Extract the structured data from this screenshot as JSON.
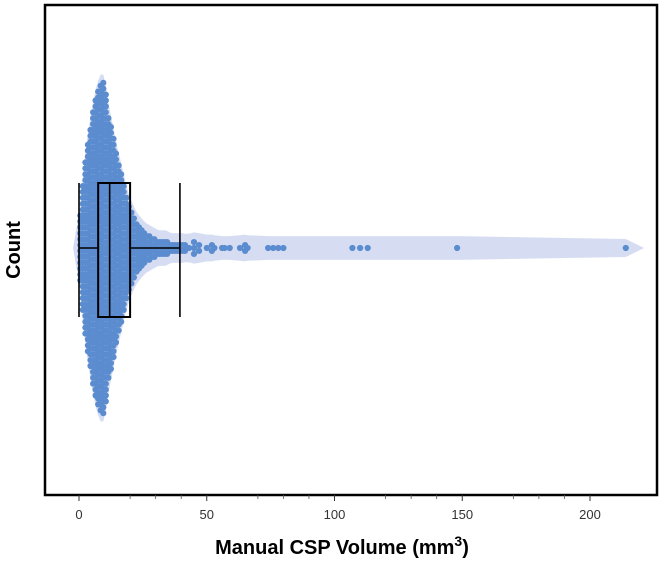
{
  "chart_data": {
    "type": "scatter",
    "subtype": "beeswarm with violin outline and box plot",
    "title": "",
    "xlabel": "Manual CSP Volume (mm",
    "xlabel_superscript": "3",
    "xlabel_suffix": ")",
    "ylabel": "Count",
    "xlim": [
      -6,
      222
    ],
    "x_ticks": [
      0,
      50,
      100,
      150,
      200
    ],
    "x_tick_labels": [
      "0",
      "50",
      "100",
      "150",
      "200"
    ],
    "x_minor_ticks": [
      20,
      30,
      40,
      70,
      80,
      90,
      120,
      130,
      140,
      170,
      180,
      190
    ],
    "grid": false,
    "legend": "none",
    "colors": {
      "points": "#5b8ccf",
      "violin": "#c8d2ee",
      "box": "#000000",
      "frame": "#000000"
    },
    "distribution": [
      {
        "x": 0.5,
        "count": 12
      },
      {
        "x": 1.5,
        "count": 22
      },
      {
        "x": 2.5,
        "count": 30
      },
      {
        "x": 3.5,
        "count": 36
      },
      {
        "x": 4.5,
        "count": 41
      },
      {
        "x": 5.5,
        "count": 47
      },
      {
        "x": 6.5,
        "count": 51
      },
      {
        "x": 7.5,
        "count": 54
      },
      {
        "x": 8.5,
        "count": 56
      },
      {
        "x": 9.5,
        "count": 57
      },
      {
        "x": 10.5,
        "count": 53
      },
      {
        "x": 11.5,
        "count": 45
      },
      {
        "x": 12.5,
        "count": 42
      },
      {
        "x": 13.5,
        "count": 38
      },
      {
        "x": 14.5,
        "count": 33
      },
      {
        "x": 15.5,
        "count": 29
      },
      {
        "x": 16.5,
        "count": 26
      },
      {
        "x": 17.5,
        "count": 22
      },
      {
        "x": 18.5,
        "count": 18
      },
      {
        "x": 19.5,
        "count": 15
      },
      {
        "x": 20.5,
        "count": 13
      },
      {
        "x": 21.5,
        "count": 11
      },
      {
        "x": 22.5,
        "count": 9
      },
      {
        "x": 23.5,
        "count": 8
      },
      {
        "x": 24.5,
        "count": 7
      },
      {
        "x": 25.5,
        "count": 6
      },
      {
        "x": 26.5,
        "count": 5
      },
      {
        "x": 27.5,
        "count": 5
      },
      {
        "x": 28.5,
        "count": 4
      },
      {
        "x": 29.5,
        "count": 4
      },
      {
        "x": 30.5,
        "count": 3
      },
      {
        "x": 31.5,
        "count": 3
      },
      {
        "x": 32.5,
        "count": 3
      },
      {
        "x": 33.5,
        "count": 3
      },
      {
        "x": 34.5,
        "count": 3
      },
      {
        "x": 35.5,
        "count": 2
      },
      {
        "x": 36.5,
        "count": 2
      },
      {
        "x": 37.5,
        "count": 2
      },
      {
        "x": 38.5,
        "count": 2
      },
      {
        "x": 39.5,
        "count": 2
      },
      {
        "x": 40.5,
        "count": 2
      },
      {
        "x": 41.5,
        "count": 2
      },
      {
        "x": 43,
        "count": 1
      },
      {
        "x": 45,
        "count": 3
      },
      {
        "x": 47,
        "count": 2
      },
      {
        "x": 50,
        "count": 1
      },
      {
        "x": 52,
        "count": 2
      },
      {
        "x": 53,
        "count": 1
      },
      {
        "x": 56,
        "count": 1
      },
      {
        "x": 57,
        "count": 1
      },
      {
        "x": 59,
        "count": 1
      },
      {
        "x": 63,
        "count": 1
      },
      {
        "x": 65,
        "count": 2
      },
      {
        "x": 66,
        "count": 1
      },
      {
        "x": 74,
        "count": 1
      },
      {
        "x": 76,
        "count": 1
      },
      {
        "x": 78,
        "count": 1
      },
      {
        "x": 80,
        "count": 1
      },
      {
        "x": 107,
        "count": 1
      },
      {
        "x": 110,
        "count": 1
      },
      {
        "x": 113,
        "count": 1
      },
      {
        "x": 148,
        "count": 1
      },
      {
        "x": 214,
        "count": 1
      }
    ],
    "box_plot": {
      "whisker_low": 0,
      "q1": 7.5,
      "median": 12,
      "q3": 20,
      "whisker_high": 39.5
    }
  }
}
